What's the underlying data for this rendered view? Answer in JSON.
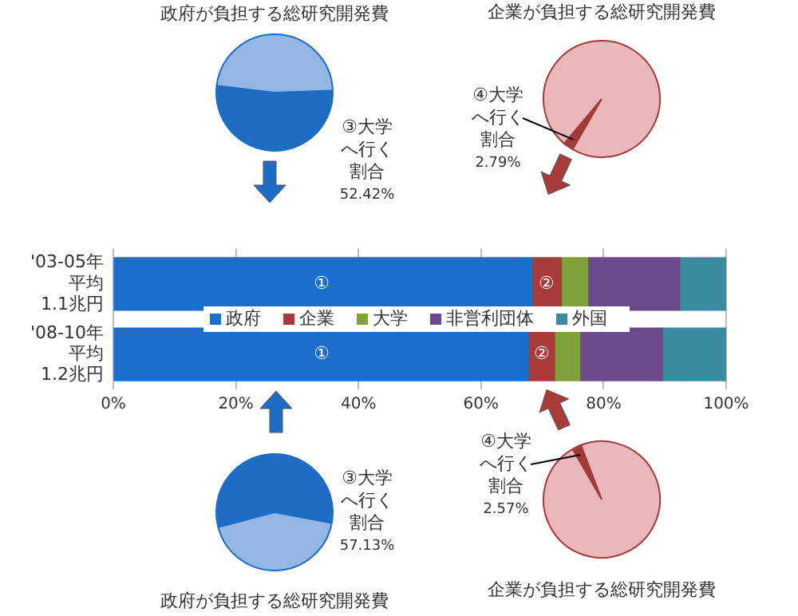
{
  "chart_data": [
    {
      "type": "pie",
      "title": "政府が負担する総研究開発費",
      "categories": [
        "③大学へ行く割合",
        null
      ],
      "values": [
        52.42,
        47.58
      ],
      "colors": [
        "#1f6cc4",
        "#93b6e4"
      ],
      "value_labels": [
        "52.42%",
        null
      ]
    },
    {
      "type": "pie",
      "title": "企業が負担する総研究開発費",
      "categories": [
        "④大学へ行く割合",
        null
      ],
      "values": [
        2.79,
        97.21
      ],
      "colors": [
        "#a33a3a",
        "#eab8bb"
      ],
      "value_labels": [
        "2.79%",
        null
      ]
    },
    {
      "type": "bar",
      "orientation": "horizontal",
      "stacked": true,
      "categories": [
        "'03-05年平均1.1兆円",
        "'08-10年平均1.2兆円"
      ],
      "series": [
        {
          "name": "政府",
          "color": "#1a6fcc",
          "values": [
            68.3,
            67.7
          ]
        },
        {
          "name": "企業",
          "color": "#a83a3a",
          "values": [
            4.8,
            4.3
          ]
        },
        {
          "name": "大学",
          "color": "#7fa03a",
          "values": [
            4.3,
            4.1
          ]
        },
        {
          "name": "非営利団体",
          "color": "#6a4a8a",
          "values": [
            15.0,
            13.5
          ]
        },
        {
          "name": "外国",
          "color": "#3a8aa0",
          "values": [
            7.6,
            10.4
          ]
        }
      ],
      "xlim": [
        0,
        100
      ],
      "xticks": [
        {
          "value": 0,
          "label": "0%"
        },
        {
          "value": 20,
          "label": "20%"
        },
        {
          "value": 40,
          "label": "40%"
        },
        {
          "value": 60,
          "label": "60%"
        },
        {
          "value": 80,
          "label": "80%"
        },
        {
          "value": 100,
          "label": "100%"
        }
      ],
      "grid": "x",
      "legend": "center",
      "annotations": [
        {
          "text": "①",
          "x": 34,
          "y": "'03-05年平均1.1兆円"
        },
        {
          "text": "②",
          "x": 70.7,
          "y": "'03-05年平均1.1兆円"
        },
        {
          "text": "①",
          "x": 34,
          "y": "'08-10年平均1.2兆円"
        },
        {
          "text": "②",
          "x": 69.9,
          "y": "'08-10年平均1.2兆円"
        }
      ]
    },
    {
      "type": "pie",
      "title": "政府が負担する総研究開発費",
      "categories": [
        "③大学へ行く割合",
        null
      ],
      "values": [
        57.13,
        42.87
      ],
      "colors": [
        "#1f6cc4",
        "#93b6e4"
      ],
      "value_labels": [
        "57.13%",
        null
      ]
    },
    {
      "type": "pie",
      "title": "企業が負担する総研究開発費",
      "categories": [
        "④大学へ行く割合",
        null
      ],
      "values": [
        2.57,
        97.43
      ],
      "colors": [
        "#a33a3a",
        "#eab8bb"
      ],
      "value_labels": [
        "2.57%",
        null
      ]
    }
  ]
}
